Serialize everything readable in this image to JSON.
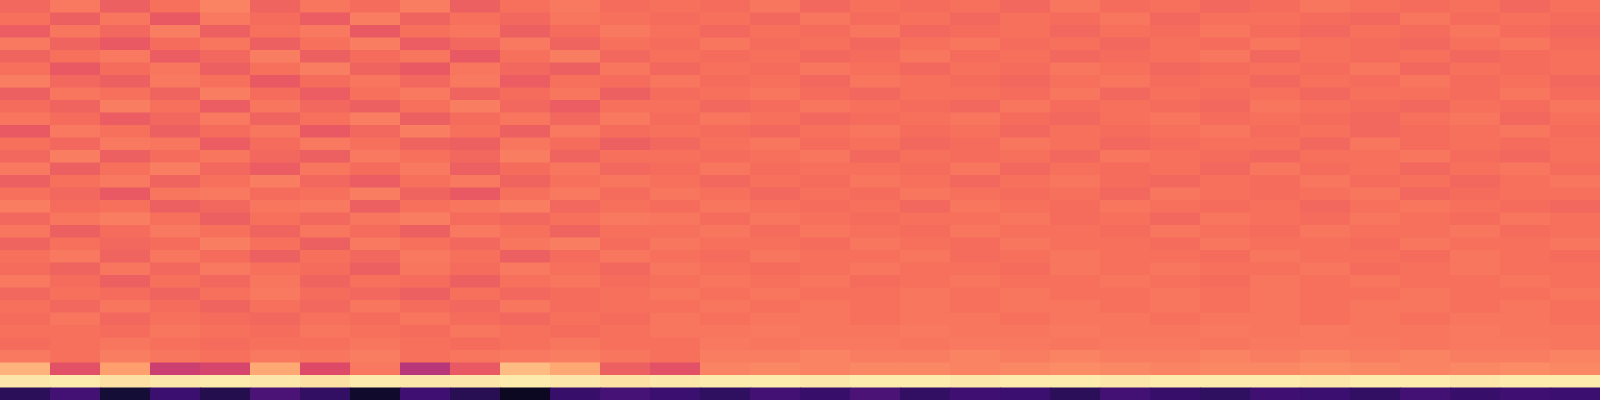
{
  "chart_data": {
    "type": "heatmap",
    "tick_labels": false,
    "zlim": [
      0,
      1
    ],
    "cells": [
      [
        0.68,
        0.72,
        0.66,
        0.7,
        0.74,
        0.67,
        0.71,
        0.69,
        0.73,
        0.66,
        0.7,
        0.72,
        0.69,
        0.7,
        0.69,
        0.71,
        0.68,
        0.7,
        0.69,
        0.7,
        0.68,
        0.71,
        0.69,
        0.7,
        0.68,
        0.69,
        0.71,
        0.7,
        0.69,
        0.7,
        0.68,
        0.7
      ],
      [
        0.7,
        0.66,
        0.71,
        0.64,
        0.72,
        0.69,
        0.65,
        0.73,
        0.67,
        0.7,
        0.68,
        0.71,
        0.7,
        0.69,
        0.7,
        0.68,
        0.71,
        0.69,
        0.7,
        0.68,
        0.7,
        0.69,
        0.71,
        0.68,
        0.7,
        0.7,
        0.69,
        0.68,
        0.71,
        0.69,
        0.7,
        0.69
      ],
      [
        0.65,
        0.71,
        0.68,
        0.73,
        0.66,
        0.7,
        0.72,
        0.64,
        0.7,
        0.71,
        0.66,
        0.69,
        0.72,
        0.7,
        0.68,
        0.7,
        0.69,
        0.71,
        0.68,
        0.69,
        0.7,
        0.68,
        0.7,
        0.69,
        0.71,
        0.69,
        0.68,
        0.7,
        0.69,
        0.71,
        0.69,
        0.68
      ],
      [
        0.72,
        0.67,
        0.64,
        0.69,
        0.71,
        0.66,
        0.7,
        0.73,
        0.65,
        0.68,
        0.72,
        0.67,
        0.7,
        0.69,
        0.71,
        0.69,
        0.7,
        0.68,
        0.7,
        0.71,
        0.69,
        0.7,
        0.68,
        0.7,
        0.69,
        0.71,
        0.7,
        0.69,
        0.68,
        0.7,
        0.71,
        0.69
      ],
      [
        0.67,
        0.7,
        0.72,
        0.65,
        0.68,
        0.73,
        0.66,
        0.69,
        0.71,
        0.64,
        0.7,
        0.73,
        0.68,
        0.7,
        0.69,
        0.7,
        0.68,
        0.69,
        0.71,
        0.69,
        0.7,
        0.68,
        0.69,
        0.7,
        0.71,
        0.68,
        0.7,
        0.69,
        0.7,
        0.68,
        0.69,
        0.7
      ],
      [
        0.7,
        0.64,
        0.69,
        0.71,
        0.66,
        0.7,
        0.73,
        0.67,
        0.64,
        0.71,
        0.68,
        0.66,
        0.71,
        0.68,
        0.7,
        0.69,
        0.71,
        0.7,
        0.68,
        0.7,
        0.69,
        0.71,
        0.7,
        0.68,
        0.69,
        0.7,
        0.69,
        0.71,
        0.68,
        0.7,
        0.69,
        0.7
      ],
      [
        0.73,
        0.68,
        0.66,
        0.72,
        0.7,
        0.64,
        0.69,
        0.71,
        0.68,
        0.72,
        0.65,
        0.7,
        0.69,
        0.71,
        0.69,
        0.7,
        0.68,
        0.71,
        0.7,
        0.69,
        0.68,
        0.7,
        0.71,
        0.69,
        0.7,
        0.68,
        0.7,
        0.69,
        0.71,
        0.69,
        0.7,
        0.68
      ],
      [
        0.66,
        0.71,
        0.7,
        0.67,
        0.73,
        0.69,
        0.65,
        0.7,
        0.72,
        0.67,
        0.69,
        0.71,
        0.66,
        0.69,
        0.7,
        0.71,
        0.69,
        0.68,
        0.7,
        0.7,
        0.69,
        0.71,
        0.68,
        0.7,
        0.69,
        0.7,
        0.68,
        0.7,
        0.7,
        0.69,
        0.71,
        0.69
      ],
      [
        0.69,
        0.67,
        0.73,
        0.7,
        0.65,
        0.71,
        0.68,
        0.66,
        0.7,
        0.73,
        0.68,
        0.65,
        0.7,
        0.7,
        0.68,
        0.69,
        0.71,
        0.7,
        0.69,
        0.68,
        0.71,
        0.69,
        0.7,
        0.69,
        0.68,
        0.71,
        0.7,
        0.69,
        0.68,
        0.7,
        0.69,
        0.71
      ],
      [
        0.71,
        0.69,
        0.65,
        0.68,
        0.72,
        0.67,
        0.7,
        0.73,
        0.66,
        0.69,
        0.71,
        0.68,
        0.72,
        0.69,
        0.71,
        0.7,
        0.68,
        0.69,
        0.7,
        0.71,
        0.69,
        0.68,
        0.7,
        0.71,
        0.69,
        0.7,
        0.69,
        0.68,
        0.7,
        0.71,
        0.68,
        0.7
      ],
      [
        0.64,
        0.72,
        0.7,
        0.66,
        0.69,
        0.71,
        0.64,
        0.68,
        0.73,
        0.7,
        0.66,
        0.72,
        0.69,
        0.7,
        0.69,
        0.68,
        0.7,
        0.71,
        0.69,
        0.7,
        0.68,
        0.7,
        0.69,
        0.7,
        0.71,
        0.69,
        0.7,
        0.68,
        0.69,
        0.7,
        0.71,
        0.69
      ],
      [
        0.7,
        0.68,
        0.72,
        0.71,
        0.65,
        0.69,
        0.72,
        0.7,
        0.67,
        0.66,
        0.71,
        0.69,
        0.66,
        0.68,
        0.7,
        0.71,
        0.69,
        0.7,
        0.68,
        0.69,
        0.71,
        0.7,
        0.68,
        0.69,
        0.7,
        0.7,
        0.68,
        0.71,
        0.69,
        0.7,
        0.69,
        0.7
      ],
      [
        0.68,
        0.73,
        0.66,
        0.69,
        0.71,
        0.68,
        0.66,
        0.72,
        0.7,
        0.68,
        0.73,
        0.67,
        0.7,
        0.7,
        0.69,
        0.7,
        0.71,
        0.68,
        0.7,
        0.69,
        0.7,
        0.68,
        0.71,
        0.7,
        0.69,
        0.68,
        0.7,
        0.7,
        0.71,
        0.69,
        0.68,
        0.7
      ],
      [
        0.72,
        0.66,
        0.7,
        0.73,
        0.68,
        0.65,
        0.71,
        0.69,
        0.72,
        0.66,
        0.69,
        0.71,
        0.68,
        0.69,
        0.71,
        0.69,
        0.7,
        0.7,
        0.69,
        0.71,
        0.68,
        0.7,
        0.69,
        0.7,
        0.68,
        0.71,
        0.69,
        0.7,
        0.68,
        0.7,
        0.71,
        0.69
      ],
      [
        0.66,
        0.7,
        0.72,
        0.67,
        0.7,
        0.73,
        0.68,
        0.65,
        0.7,
        0.72,
        0.67,
        0.7,
        0.71,
        0.7,
        0.68,
        0.7,
        0.69,
        0.71,
        0.7,
        0.68,
        0.7,
        0.71,
        0.69,
        0.68,
        0.7,
        0.69,
        0.71,
        0.69,
        0.7,
        0.68,
        0.7,
        0.71
      ],
      [
        0.7,
        0.68,
        0.64,
        0.71,
        0.72,
        0.69,
        0.7,
        0.73,
        0.67,
        0.64,
        0.7,
        0.72,
        0.69,
        0.71,
        0.7,
        0.68,
        0.7,
        0.69,
        0.71,
        0.7,
        0.69,
        0.7,
        0.68,
        0.71,
        0.7,
        0.69,
        0.7,
        0.71,
        0.68,
        0.69,
        0.7,
        0.7
      ],
      [
        0.73,
        0.69,
        0.7,
        0.66,
        0.68,
        0.71,
        0.72,
        0.66,
        0.7,
        0.71,
        0.73,
        0.68,
        0.7,
        0.69,
        0.71,
        0.7,
        0.69,
        0.7,
        0.68,
        0.71,
        0.7,
        0.69,
        0.71,
        0.7,
        0.69,
        0.7,
        0.68,
        0.7,
        0.71,
        0.7,
        0.69,
        0.68
      ],
      [
        0.68,
        0.71,
        0.73,
        0.7,
        0.66,
        0.7,
        0.68,
        0.71,
        0.73,
        0.69,
        0.68,
        0.7,
        0.72,
        0.71,
        0.69,
        0.71,
        0.7,
        0.69,
        0.7,
        0.7,
        0.71,
        0.69,
        0.7,
        0.68,
        0.71,
        0.7,
        0.69,
        0.71,
        0.7,
        0.69,
        0.71,
        0.7
      ],
      [
        0.71,
        0.66,
        0.69,
        0.72,
        0.7,
        0.67,
        0.71,
        0.69,
        0.66,
        0.72,
        0.7,
        0.67,
        0.7,
        0.7,
        0.71,
        0.69,
        0.71,
        0.7,
        0.69,
        0.71,
        0.7,
        0.7,
        0.69,
        0.71,
        0.7,
        0.69,
        0.71,
        0.7,
        0.7,
        0.71,
        0.69,
        0.7
      ],
      [
        0.67,
        0.7,
        0.68,
        0.69,
        0.73,
        0.7,
        0.66,
        0.72,
        0.7,
        0.68,
        0.71,
        0.73,
        0.69,
        0.71,
        0.7,
        0.7,
        0.69,
        0.71,
        0.7,
        0.69,
        0.71,
        0.7,
        0.7,
        0.69,
        0.71,
        0.7,
        0.7,
        0.69,
        0.71,
        0.7,
        0.7,
        0.71
      ],
      [
        0.7,
        0.72,
        0.67,
        0.71,
        0.69,
        0.66,
        0.7,
        0.68,
        0.72,
        0.7,
        0.66,
        0.69,
        0.71,
        0.7,
        0.69,
        0.71,
        0.7,
        0.7,
        0.71,
        0.69,
        0.7,
        0.71,
        0.7,
        0.7,
        0.69,
        0.71,
        0.7,
        0.7,
        0.69,
        0.71,
        0.7,
        0.69
      ],
      [
        0.69,
        0.67,
        0.71,
        0.68,
        0.72,
        0.7,
        0.69,
        0.66,
        0.71,
        0.69,
        0.72,
        0.7,
        0.68,
        0.71,
        0.7,
        0.69,
        0.7,
        0.71,
        0.7,
        0.7,
        0.69,
        0.71,
        0.7,
        0.71,
        0.7,
        0.7,
        0.71,
        0.69,
        0.7,
        0.71,
        0.7,
        0.7
      ],
      [
        0.72,
        0.69,
        0.66,
        0.7,
        0.68,
        0.71,
        0.67,
        0.7,
        0.69,
        0.66,
        0.7,
        0.71,
        0.69,
        0.7,
        0.71,
        0.7,
        0.71,
        0.69,
        0.7,
        0.71,
        0.7,
        0.7,
        0.71,
        0.7,
        0.69,
        0.71,
        0.7,
        0.71,
        0.7,
        0.7,
        0.71,
        0.7
      ],
      [
        0.68,
        0.7,
        0.69,
        0.67,
        0.7,
        0.72,
        0.69,
        0.68,
        0.66,
        0.7,
        0.68,
        0.69,
        0.7,
        0.71,
        0.7,
        0.71,
        0.7,
        0.7,
        0.71,
        0.7,
        0.71,
        0.7,
        0.7,
        0.71,
        0.7,
        0.71,
        0.7,
        0.7,
        0.71,
        0.7,
        0.7,
        0.71
      ],
      [
        0.7,
        0.68,
        0.71,
        0.69,
        0.67,
        0.7,
        0.68,
        0.71,
        0.69,
        0.68,
        0.71,
        0.69,
        0.7,
        0.7,
        0.71,
        0.7,
        0.71,
        0.7,
        0.71,
        0.7,
        0.71,
        0.71,
        0.7,
        0.71,
        0.7,
        0.71,
        0.7,
        0.71,
        0.71,
        0.7,
        0.71,
        0.7
      ],
      [
        0.69,
        0.71,
        0.68,
        0.7,
        0.69,
        0.68,
        0.7,
        0.69,
        0.71,
        0.69,
        0.68,
        0.7,
        0.69,
        0.71,
        0.7,
        0.71,
        0.71,
        0.7,
        0.71,
        0.71,
        0.7,
        0.71,
        0.71,
        0.7,
        0.71,
        0.71,
        0.7,
        0.71,
        0.7,
        0.71,
        0.71,
        0.7
      ],
      [
        0.7,
        0.7,
        0.69,
        0.71,
        0.7,
        0.69,
        0.71,
        0.7,
        0.69,
        0.71,
        0.7,
        0.69,
        0.7,
        0.71,
        0.71,
        0.72,
        0.71,
        0.71,
        0.72,
        0.71,
        0.71,
        0.72,
        0.71,
        0.71,
        0.72,
        0.71,
        0.72,
        0.71,
        0.71,
        0.72,
        0.71,
        0.71
      ],
      [
        0.69,
        0.7,
        0.71,
        0.7,
        0.69,
        0.7,
        0.7,
        0.71,
        0.7,
        0.69,
        0.7,
        0.71,
        0.7,
        0.7,
        0.72,
        0.71,
        0.72,
        0.72,
        0.71,
        0.72,
        0.72,
        0.71,
        0.72,
        0.72,
        0.71,
        0.72,
        0.72,
        0.72,
        0.71,
        0.72,
        0.72,
        0.71
      ],
      [
        0.72,
        0.7,
        0.73,
        0.71,
        0.7,
        0.72,
        0.71,
        0.73,
        0.7,
        0.71,
        0.72,
        0.73,
        0.71,
        0.7,
        0.73,
        0.73,
        0.74,
        0.73,
        0.73,
        0.74,
        0.73,
        0.74,
        0.73,
        0.73,
        0.74,
        0.73,
        0.74,
        0.73,
        0.74,
        0.73,
        0.73,
        0.74
      ],
      [
        0.84,
        0.62,
        0.8,
        0.55,
        0.58,
        0.82,
        0.6,
        0.72,
        0.5,
        0.64,
        0.86,
        0.82,
        0.66,
        0.62,
        0.74,
        0.75,
        0.74,
        0.75,
        0.75,
        0.74,
        0.75,
        0.76,
        0.75,
        0.74,
        0.75,
        0.75,
        0.76,
        0.75,
        0.74,
        0.75,
        0.76,
        0.75
      ],
      [
        0.95,
        0.96,
        0.94,
        0.95,
        0.96,
        0.95,
        0.94,
        0.96,
        0.95,
        0.95,
        0.96,
        0.95,
        0.94,
        0.95,
        0.96,
        0.96,
        0.95,
        0.96,
        0.96,
        0.95,
        0.96,
        0.96,
        0.95,
        0.96,
        0.96,
        0.96,
        0.95,
        0.96,
        0.96,
        0.95,
        0.96,
        0.96
      ],
      [
        0.16,
        0.22,
        0.1,
        0.2,
        0.14,
        0.24,
        0.18,
        0.08,
        0.21,
        0.15,
        0.06,
        0.19,
        0.23,
        0.2,
        0.17,
        0.22,
        0.19,
        0.24,
        0.18,
        0.21,
        0.2,
        0.16,
        0.22,
        0.19,
        0.17,
        0.21,
        0.2,
        0.18,
        0.22,
        0.19,
        0.21,
        0.2
      ]
    ]
  }
}
